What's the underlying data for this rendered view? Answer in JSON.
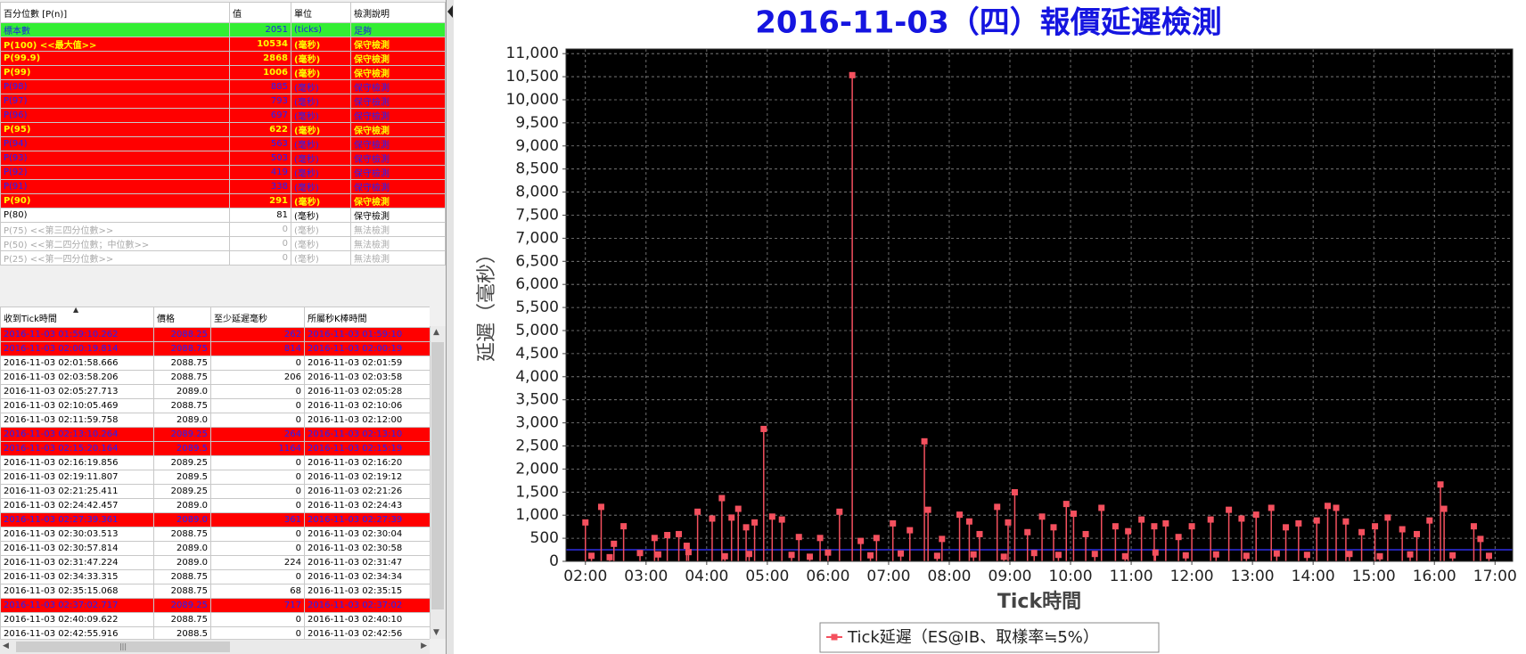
{
  "top_table": {
    "columns": [
      "百分位數 [P(n)]",
      "值",
      "單位",
      "檢測說明"
    ],
    "rows": [
      {
        "style": "ok",
        "cells": [
          "標本數",
          2051,
          "(ticks)",
          "足夠"
        ]
      },
      {
        "style": "alert",
        "cells": [
          "P(100)  <<最大值>>",
          10534,
          "(毫秒)",
          "保守檢測"
        ]
      },
      {
        "style": "alert",
        "cells": [
          "P(99.9)",
          2868,
          "(毫秒)",
          "保守檢測"
        ]
      },
      {
        "style": "alert",
        "cells": [
          "P(99)",
          1006,
          "(毫秒)",
          "保守檢測"
        ]
      },
      {
        "style": "warn",
        "cells": [
          "P(98)",
          885,
          "(毫秒)",
          "保守檢測"
        ]
      },
      {
        "style": "warn",
        "cells": [
          "P(97)",
          793,
          "(毫秒)",
          "保守檢測"
        ]
      },
      {
        "style": "warn",
        "cells": [
          "P(96)",
          697,
          "(毫秒)",
          "保守檢測"
        ]
      },
      {
        "style": "alert",
        "cells": [
          "P(95)",
          622,
          "(毫秒)",
          "保守檢測"
        ]
      },
      {
        "style": "warn",
        "cells": [
          "P(94)",
          563,
          "(毫秒)",
          "保守檢測"
        ]
      },
      {
        "style": "warn",
        "cells": [
          "P(93)",
          503,
          "(毫秒)",
          "保守檢測"
        ]
      },
      {
        "style": "warn",
        "cells": [
          "P(92)",
          419,
          "(毫秒)",
          "保守檢測"
        ]
      },
      {
        "style": "warn",
        "cells": [
          "P(91)",
          338,
          "(毫秒)",
          "保守檢測"
        ]
      },
      {
        "style": "alert",
        "cells": [
          "P(90)",
          291,
          "(毫秒)",
          "保守檢測"
        ]
      },
      {
        "style": "normal",
        "cells": [
          "P(80)",
          81,
          "(毫秒)",
          "保守檢測"
        ]
      },
      {
        "style": "disabled",
        "cells": [
          "P(75)  <<第三四分位數>>",
          0,
          "(毫秒)",
          "無法檢測"
        ]
      },
      {
        "style": "disabled",
        "cells": [
          "P(50)  <<第二四分位數；中位數>>",
          0,
          "(毫秒)",
          "無法檢測"
        ]
      },
      {
        "style": "disabled",
        "cells": [
          "P(25)  <<第一四分位數>>",
          0,
          "(毫秒)",
          "無法檢測"
        ]
      }
    ]
  },
  "bottom_table": {
    "columns": [
      "收到Tick時間",
      "價格",
      "至少延遲毫秒",
      "所屬秒K棒時間"
    ],
    "rows": [
      {
        "style": "warn",
        "cells": [
          "2016-11-03 01:59:10.262",
          "2088.25",
          262,
          "2016-11-03 01:59:10"
        ]
      },
      {
        "style": "warn",
        "cells": [
          "2016-11-03 02:00:19.814",
          "2088.75",
          814,
          "2016-11-03 02:00:19"
        ]
      },
      {
        "style": "normal",
        "cells": [
          "2016-11-03 02:01:58.666",
          "2088.75",
          0,
          "2016-11-03 02:01:59"
        ]
      },
      {
        "style": "normal",
        "cells": [
          "2016-11-03 02:03:58.206",
          "2088.75",
          206,
          "2016-11-03 02:03:58"
        ]
      },
      {
        "style": "normal",
        "cells": [
          "2016-11-03 02:05:27.713",
          "2089.0",
          0,
          "2016-11-03 02:05:28"
        ]
      },
      {
        "style": "normal",
        "cells": [
          "2016-11-03 02:10:05.469",
          "2088.75",
          0,
          "2016-11-03 02:10:06"
        ]
      },
      {
        "style": "normal",
        "cells": [
          "2016-11-03 02:11:59.758",
          "2089.0",
          0,
          "2016-11-03 02:12:00"
        ]
      },
      {
        "style": "warn",
        "cells": [
          "2016-11-03 02:13:10.264",
          "2089.25",
          264,
          "2016-11-03 02:13:10"
        ]
      },
      {
        "style": "warn",
        "cells": [
          "2016-11-03 02:15:20.164",
          "2089.5",
          1164,
          "2016-11-03 02:15:19"
        ]
      },
      {
        "style": "normal",
        "cells": [
          "2016-11-03 02:16:19.856",
          "2089.25",
          0,
          "2016-11-03 02:16:20"
        ]
      },
      {
        "style": "normal",
        "cells": [
          "2016-11-03 02:19:11.807",
          "2089.5",
          0,
          "2016-11-03 02:19:12"
        ]
      },
      {
        "style": "normal",
        "cells": [
          "2016-11-03 02:21:25.411",
          "2089.25",
          0,
          "2016-11-03 02:21:26"
        ]
      },
      {
        "style": "normal",
        "cells": [
          "2016-11-03 02:24:42.457",
          "2089.0",
          0,
          "2016-11-03 02:24:43"
        ]
      },
      {
        "style": "warn",
        "cells": [
          "2016-11-03 02:27:39.361",
          "2089.0",
          361,
          "2016-11-03 02:27:39"
        ]
      },
      {
        "style": "normal",
        "cells": [
          "2016-11-03 02:30:03.513",
          "2088.75",
          0,
          "2016-11-03 02:30:04"
        ]
      },
      {
        "style": "normal",
        "cells": [
          "2016-11-03 02:30:57.814",
          "2089.0",
          0,
          "2016-11-03 02:30:58"
        ]
      },
      {
        "style": "normal",
        "cells": [
          "2016-11-03 02:31:47.224",
          "2089.0",
          224,
          "2016-11-03 02:31:47"
        ]
      },
      {
        "style": "normal",
        "cells": [
          "2016-11-03 02:34:33.315",
          "2088.75",
          0,
          "2016-11-03 02:34:34"
        ]
      },
      {
        "style": "normal",
        "cells": [
          "2016-11-03 02:35:15.068",
          "2088.75",
          68,
          "2016-11-03 02:35:15"
        ]
      },
      {
        "style": "warn",
        "cells": [
          "2016-11-03 02:37:02.717",
          "2089.25",
          717,
          "2016-11-03 02:37:02"
        ]
      },
      {
        "style": "normal",
        "cells": [
          "2016-11-03 02:40:09.622",
          "2088.75",
          0,
          "2016-11-03 02:40:10"
        ]
      },
      {
        "style": "normal",
        "cells": [
          "2016-11-03 02:42:55.916",
          "2088.5",
          0,
          "2016-11-03 02:42:56"
        ]
      }
    ]
  },
  "chart_data": {
    "type": "stem",
    "title": "2016-11-03（四）報價延遲檢測",
    "x_label": "Tick時間",
    "y_label": "延遲（毫秒）",
    "xlim": [
      1.68,
      17.29
    ],
    "ylim": [
      0,
      11100
    ],
    "xticks": [
      {
        "value": 2,
        "label": "02:00"
      },
      {
        "value": 3,
        "label": "03:00"
      },
      {
        "value": 4,
        "label": "04:00"
      },
      {
        "value": 5,
        "label": "05:00"
      },
      {
        "value": 6,
        "label": "06:00"
      },
      {
        "value": 7,
        "label": "07:00"
      },
      {
        "value": 8,
        "label": "08:00"
      },
      {
        "value": 9,
        "label": "09:00"
      },
      {
        "value": 10,
        "label": "10:00"
      },
      {
        "value": 11,
        "label": "11:00"
      },
      {
        "value": 12,
        "label": "12:00"
      },
      {
        "value": 13,
        "label": "13:00"
      },
      {
        "value": 14,
        "label": "14:00"
      },
      {
        "value": 15,
        "label": "15:00"
      },
      {
        "value": 16,
        "label": "16:00"
      },
      {
        "value": 17,
        "label": "17:00"
      }
    ],
    "yticks": [
      0,
      500,
      {
        "value": 1000,
        "label": "1,000"
      },
      {
        "value": 1500,
        "label": "1,500"
      },
      {
        "value": 2000,
        "label": "2,000"
      },
      {
        "value": 2500,
        "label": "2,500"
      },
      {
        "value": 3000,
        "label": "3,000"
      },
      {
        "value": 3500,
        "label": "3,500"
      },
      {
        "value": 4000,
        "label": "4,000"
      },
      {
        "value": 4500,
        "label": "4,500"
      },
      {
        "value": 5000,
        "label": "5,000"
      },
      {
        "value": 5500,
        "label": "5,500"
      },
      {
        "value": 6000,
        "label": "6,000"
      },
      {
        "value": 6500,
        "label": "6,500"
      },
      {
        "value": 7000,
        "label": "7,000"
      },
      {
        "value": 7500,
        "label": "7,500"
      },
      {
        "value": 8000,
        "label": "8,000"
      },
      {
        "value": 8500,
        "label": "8,500"
      },
      {
        "value": 9000,
        "label": "9,000"
      },
      {
        "value": 9500,
        "label": "9,500"
      },
      {
        "value": 10000,
        "label": "10,000"
      },
      {
        "value": 10500,
        "label": "10,500"
      },
      {
        "value": 11000,
        "label": "11,000"
      }
    ],
    "grid": true,
    "reference_line": {
      "value": 250,
      "color": "#2222aa"
    },
    "series": [
      {
        "name": "Tick延遲（ES@IB、取樣率≒5%）",
        "color": "#f4505e",
        "x": [
          2.0,
          2.1,
          2.26,
          2.4,
          2.47,
          2.63,
          2.9,
          3.14,
          3.2,
          3.35,
          3.54,
          3.67,
          3.7,
          3.85,
          4.09,
          4.25,
          4.3,
          4.41,
          4.52,
          4.65,
          4.7,
          4.79,
          4.94,
          5.08,
          5.24,
          5.4,
          5.52,
          5.7,
          5.87,
          6.0,
          6.19,
          6.4,
          6.54,
          6.7,
          6.8,
          7.07,
          7.2,
          7.35,
          7.59,
          7.65,
          7.8,
          7.88,
          8.17,
          8.33,
          8.4,
          8.5,
          8.79,
          8.9,
          8.97,
          9.08,
          9.29,
          9.4,
          9.53,
          9.72,
          9.8,
          9.93,
          10.05,
          10.25,
          10.4,
          10.51,
          10.74,
          10.9,
          10.95,
          11.17,
          11.38,
          11.4,
          11.57,
          11.78,
          11.9,
          12.0,
          12.31,
          12.4,
          12.61,
          12.82,
          12.9,
          13.06,
          13.31,
          13.4,
          13.55,
          13.76,
          13.9,
          14.06,
          14.24,
          14.38,
          14.54,
          14.6,
          14.8,
          15.02,
          15.1,
          15.23,
          15.47,
          15.6,
          15.71,
          15.92,
          16.1,
          16.16,
          16.3,
          16.65,
          16.76,
          16.9
        ],
        "values": [
          843,
          120,
          1180,
          90,
          380,
          760,
          180,
          506,
          150,
          569,
          590,
          337,
          200,
          1075,
          927,
          1370,
          110,
          948,
          1138,
          737,
          160,
          843,
          2868,
          969,
          906,
          140,
          527,
          100,
          506,
          190,
          1075,
          10534,
          442,
          130,
          506,
          822,
          170,
          674,
          2600,
          1117,
          120,
          485,
          1011,
          864,
          150,
          590,
          1180,
          100,
          843,
          1496,
          632,
          180,
          969,
          737,
          140,
          1243,
          1032,
          590,
          160,
          1159,
          759,
          110,
          653,
          906,
          759,
          190,
          822,
          527,
          130,
          759,
          906,
          150,
          1117,
          927,
          120,
          1011,
          1159,
          170,
          737,
          822,
          140,
          885,
          1201,
          1159,
          864,
          160,
          632,
          759,
          110,
          948,
          695,
          150,
          590,
          885,
          1665,
          1138,
          130,
          759,
          485,
          120
        ]
      }
    ]
  }
}
